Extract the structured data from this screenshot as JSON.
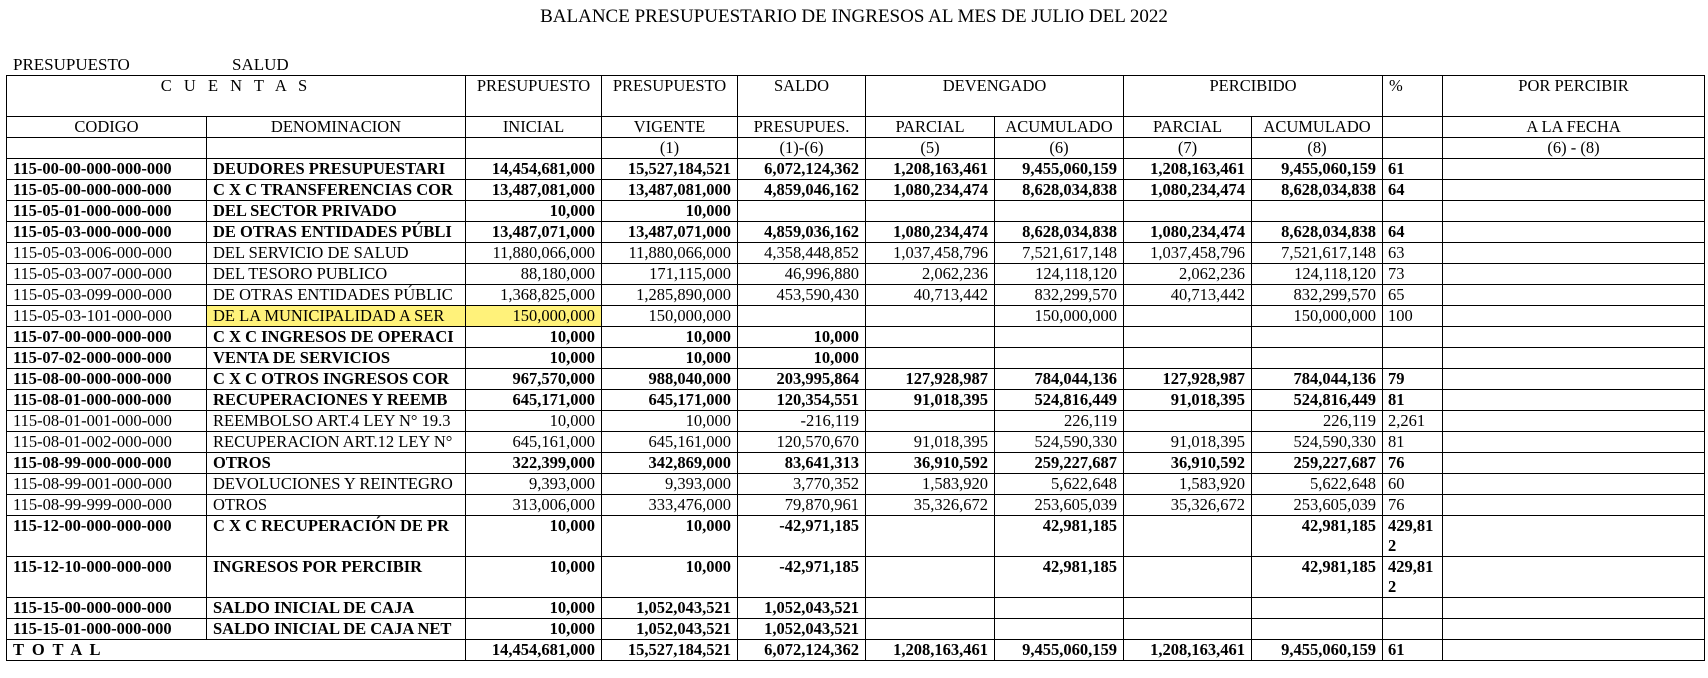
{
  "title": "BALANCE PRESUPUESTARIO DE INGRESOS AL MES DE JULIO DEL 2022",
  "meta": {
    "label": "PRESUPUESTO",
    "value": "SALUD"
  },
  "header": {
    "cuentas": "C U E N T A S",
    "presupuesto_1": "PRESUPUESTO",
    "presupuesto_2": "PRESUPUESTO",
    "saldo": "SALDO",
    "devengado": "DEVENGADO",
    "percibido": "PERCIBIDO",
    "pct": "%",
    "por_percibir": "POR PERCIBIR",
    "codigo": "CODIGO",
    "denominacion": "DENOMINACION",
    "inicial": "INICIAL",
    "vigente": "VIGENTE",
    "presupues": "PRESUPUES.",
    "parcial_1": "PARCIAL",
    "acumulado_1": "ACUMULADO",
    "parcial_2": "PARCIAL",
    "acumulado_2": "ACUMULADO",
    "a_la_fecha": "A LA FECHA",
    "n_vigente": "(1)",
    "n_saldo": "(1)-(6)",
    "n_dev_parcial": "(5)",
    "n_dev_acum": "(6)",
    "n_per_parcial": "(7)",
    "n_per_acum": "(8)",
    "n_por_percibir": "(6) - (8)"
  },
  "rows": [
    {
      "codigo": "115-00-00-000-000-000",
      "denominacion": "DEUDORES PRESUPUESTARI",
      "inicial": "14,454,681,000",
      "vigente": "15,527,184,521",
      "saldo": "6,072,124,362",
      "dev_parcial": "1,208,163,461",
      "dev_acum": "9,455,060,159",
      "per_parcial": "1,208,163,461",
      "per_acum": "9,455,060,159",
      "pct": "61",
      "por_percibir": "",
      "bold": true
    },
    {
      "codigo": "115-05-00-000-000-000",
      "denominacion": "C X C TRANSFERENCIAS COR",
      "inicial": "13,487,081,000",
      "vigente": "13,487,081,000",
      "saldo": "4,859,046,162",
      "dev_parcial": "1,080,234,474",
      "dev_acum": "8,628,034,838",
      "per_parcial": "1,080,234,474",
      "per_acum": "8,628,034,838",
      "pct": "64",
      "por_percibir": "",
      "bold": true
    },
    {
      "codigo": "115-05-01-000-000-000",
      "denominacion": "DEL SECTOR PRIVADO",
      "inicial": "10,000",
      "vigente": "10,000",
      "saldo": "",
      "dev_parcial": "",
      "dev_acum": "",
      "per_parcial": "",
      "per_acum": "",
      "pct": "",
      "por_percibir": "",
      "bold": true
    },
    {
      "codigo": "115-05-03-000-000-000",
      "denominacion": "DE OTRAS ENTIDADES PÚBLI",
      "inicial": "13,487,071,000",
      "vigente": "13,487,071,000",
      "saldo": "4,859,036,162",
      "dev_parcial": "1,080,234,474",
      "dev_acum": "8,628,034,838",
      "per_parcial": "1,080,234,474",
      "per_acum": "8,628,034,838",
      "pct": "64",
      "por_percibir": "",
      "bold": true
    },
    {
      "codigo": "115-05-03-006-000-000",
      "denominacion": "DEL SERVICIO DE SALUD",
      "inicial": "11,880,066,000",
      "vigente": "11,880,066,000",
      "saldo": "4,358,448,852",
      "dev_parcial": "1,037,458,796",
      "dev_acum": "7,521,617,148",
      "per_parcial": "1,037,458,796",
      "per_acum": "7,521,617,148",
      "pct": "63",
      "por_percibir": "",
      "bold": false
    },
    {
      "codigo": "115-05-03-007-000-000",
      "denominacion": "DEL TESORO PUBLICO",
      "inicial": "88,180,000",
      "vigente": "171,115,000",
      "saldo": "46,996,880",
      "dev_parcial": "2,062,236",
      "dev_acum": "124,118,120",
      "per_parcial": "2,062,236",
      "per_acum": "124,118,120",
      "pct": "73",
      "por_percibir": "",
      "bold": false
    },
    {
      "codigo": "115-05-03-099-000-000",
      "denominacion": "DE OTRAS ENTIDADES PÚBLIC",
      "inicial": "1,368,825,000",
      "vigente": "1,285,890,000",
      "saldo": "453,590,430",
      "dev_parcial": "40,713,442",
      "dev_acum": "832,299,570",
      "per_parcial": "40,713,442",
      "per_acum": "832,299,570",
      "pct": "65",
      "por_percibir": "",
      "bold": false
    },
    {
      "codigo": "115-05-03-101-000-000",
      "denominacion": "DE LA MUNICIPALIDAD A  SER",
      "inicial": "150,000,000",
      "vigente": "150,000,000",
      "saldo": "",
      "dev_parcial": "",
      "dev_acum": "150,000,000",
      "per_parcial": "",
      "per_acum": "150,000,000",
      "pct": "100",
      "por_percibir": "",
      "bold": false,
      "highlight": true
    },
    {
      "codigo": "115-07-00-000-000-000",
      "denominacion": "C X C INGRESOS DE OPERACI",
      "inicial": "10,000",
      "vigente": "10,000",
      "saldo": "10,000",
      "dev_parcial": "",
      "dev_acum": "",
      "per_parcial": "",
      "per_acum": "",
      "pct": "",
      "por_percibir": "",
      "bold": true
    },
    {
      "codigo": "115-07-02-000-000-000",
      "denominacion": "VENTA DE SERVICIOS",
      "inicial": "10,000",
      "vigente": "10,000",
      "saldo": "10,000",
      "dev_parcial": "",
      "dev_acum": "",
      "per_parcial": "",
      "per_acum": "",
      "pct": "",
      "por_percibir": "",
      "bold": true
    },
    {
      "codigo": "115-08-00-000-000-000",
      "denominacion": "C X C OTROS INGRESOS COR",
      "inicial": "967,570,000",
      "vigente": "988,040,000",
      "saldo": "203,995,864",
      "dev_parcial": "127,928,987",
      "dev_acum": "784,044,136",
      "per_parcial": "127,928,987",
      "per_acum": "784,044,136",
      "pct": "79",
      "por_percibir": "",
      "bold": true
    },
    {
      "codigo": "115-08-01-000-000-000",
      "denominacion": "RECUPERACIONES Y REEMB",
      "inicial": "645,171,000",
      "vigente": "645,171,000",
      "saldo": "120,354,551",
      "dev_parcial": "91,018,395",
      "dev_acum": "524,816,449",
      "per_parcial": "91,018,395",
      "per_acum": "524,816,449",
      "pct": "81",
      "por_percibir": "",
      "bold": true
    },
    {
      "codigo": "115-08-01-001-000-000",
      "denominacion": "REEMBOLSO ART.4 LEY N° 19.3",
      "inicial": "10,000",
      "vigente": "10,000",
      "saldo": "-216,119",
      "dev_parcial": "",
      "dev_acum": "226,119",
      "per_parcial": "",
      "per_acum": "226,119",
      "pct": "2,261",
      "por_percibir": "",
      "bold": false
    },
    {
      "codigo": "115-08-01-002-000-000",
      "denominacion": "RECUPERACION ART.12 LEY N°",
      "inicial": "645,161,000",
      "vigente": "645,161,000",
      "saldo": "120,570,670",
      "dev_parcial": "91,018,395",
      "dev_acum": "524,590,330",
      "per_parcial": "91,018,395",
      "per_acum": "524,590,330",
      "pct": "81",
      "por_percibir": "",
      "bold": false
    },
    {
      "codigo": "115-08-99-000-000-000",
      "denominacion": "OTROS",
      "inicial": "322,399,000",
      "vigente": "342,869,000",
      "saldo": "83,641,313",
      "dev_parcial": "36,910,592",
      "dev_acum": "259,227,687",
      "per_parcial": "36,910,592",
      "per_acum": "259,227,687",
      "pct": "76",
      "por_percibir": "",
      "bold": true
    },
    {
      "codigo": "115-08-99-001-000-000",
      "denominacion": "DEVOLUCIONES Y REINTEGRO",
      "inicial": "9,393,000",
      "vigente": "9,393,000",
      "saldo": "3,770,352",
      "dev_parcial": "1,583,920",
      "dev_acum": "5,622,648",
      "per_parcial": "1,583,920",
      "per_acum": "5,622,648",
      "pct": "60",
      "por_percibir": "",
      "bold": false
    },
    {
      "codigo": "115-08-99-999-000-000",
      "denominacion": "OTROS",
      "inicial": "313,006,000",
      "vigente": "333,476,000",
      "saldo": "79,870,961",
      "dev_parcial": "35,326,672",
      "dev_acum": "253,605,039",
      "per_parcial": "35,326,672",
      "per_acum": "253,605,039",
      "pct": "76",
      "por_percibir": "",
      "bold": false
    },
    {
      "codigo": "115-12-00-000-000-000",
      "denominacion": "C X C RECUPERACIÓN DE PR",
      "inicial": "10,000",
      "vigente": "10,000",
      "saldo": "-42,971,185",
      "dev_parcial": "",
      "dev_acum": "42,981,185",
      "per_parcial": "",
      "per_acum": "42,981,185",
      "pct": "429,812",
      "por_percibir": "",
      "bold": true,
      "tall": true
    },
    {
      "codigo": "115-12-10-000-000-000",
      "denominacion": "INGRESOS POR PERCIBIR",
      "inicial": "10,000",
      "vigente": "10,000",
      "saldo": "-42,971,185",
      "dev_parcial": "",
      "dev_acum": "42,981,185",
      "per_parcial": "",
      "per_acum": "42,981,185",
      "pct": "429,812",
      "por_percibir": "",
      "bold": true,
      "tall": true
    },
    {
      "codigo": "115-15-00-000-000-000",
      "denominacion": "SALDO INICIAL DE CAJA",
      "inicial": "10,000",
      "vigente": "1,052,043,521",
      "saldo": "1,052,043,521",
      "dev_parcial": "",
      "dev_acum": "",
      "per_parcial": "",
      "per_acum": "",
      "pct": "",
      "por_percibir": "",
      "bold": true
    },
    {
      "codigo": "115-15-01-000-000-000",
      "denominacion": "SALDO INICIAL DE CAJA NET",
      "inicial": "10,000",
      "vigente": "1,052,043,521",
      "saldo": "1,052,043,521",
      "dev_parcial": "",
      "dev_acum": "",
      "per_parcial": "",
      "per_acum": "",
      "pct": "",
      "por_percibir": "",
      "bold": true
    }
  ],
  "total": {
    "label": "T O T A L",
    "inicial": "14,454,681,000",
    "vigente": "15,527,184,521",
    "saldo": "6,072,124,362",
    "dev_parcial": "1,208,163,461",
    "dev_acum": "9,455,060,159",
    "per_parcial": "1,208,163,461",
    "per_acum": "9,455,060,159",
    "pct": "61",
    "por_percibir": ""
  }
}
